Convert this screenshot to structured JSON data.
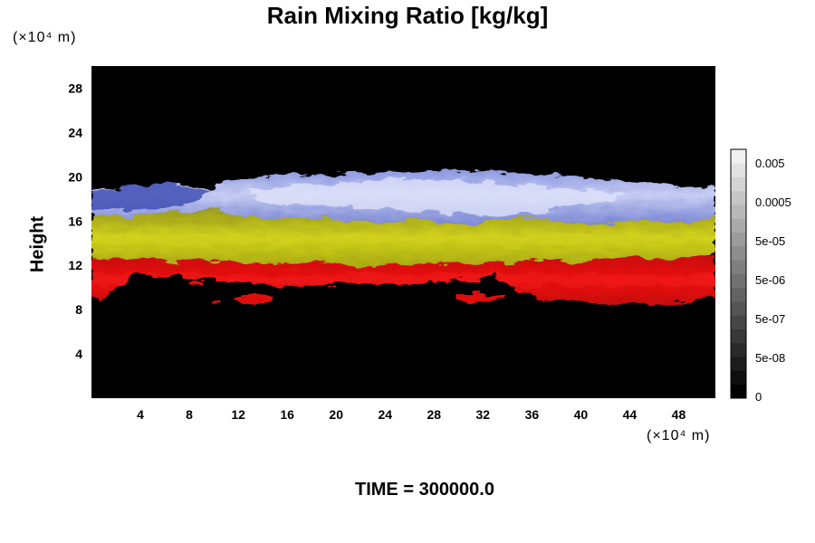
{
  "chart_data": {
    "type": "heatmap",
    "title": "Rain Mixing Ratio [kg/kg]",
    "ylabel": "Height",
    "y_unit": "(×10⁴ m)",
    "x_unit": "(×10⁴ m)",
    "x_ticks": [
      "4",
      "8",
      "12",
      "16",
      "20",
      "24",
      "28",
      "32",
      "36",
      "40",
      "44",
      "48"
    ],
    "y_ticks": [
      "4",
      "8",
      "12",
      "16",
      "20",
      "24",
      "28"
    ],
    "xlim": [
      0,
      51
    ],
    "ylim": [
      0,
      30
    ],
    "colorbar": {
      "tick_labels": [
        "0.005",
        "0.0005",
        "5e-05",
        "5e-06",
        "5e-07",
        "5e-08",
        "0"
      ],
      "colors": [
        "#000000",
        "#0e0e0e",
        "#1c1c1c",
        "#2a2a2a",
        "#383838",
        "#464646",
        "#555555",
        "#636363",
        "#717171",
        "#7f7f7f",
        "#8d8d8d",
        "#9b9b9b",
        "#aaaaaa",
        "#b8b8b8",
        "#c6c6c6",
        "#d4d4d4",
        "#e2e2e2",
        "#f0f0f0"
      ]
    },
    "bands": [
      {
        "name": "blue-white",
        "color": "#b8c2f0",
        "bottom": 16,
        "top": 20
      },
      {
        "name": "yellow",
        "color": "#c8c814",
        "bottom": 12.5,
        "top": 16.5
      },
      {
        "name": "red",
        "color": "#e81010",
        "bottom": 8.5,
        "top": 13
      }
    ]
  },
  "time_label": "TIME = 300000.0"
}
